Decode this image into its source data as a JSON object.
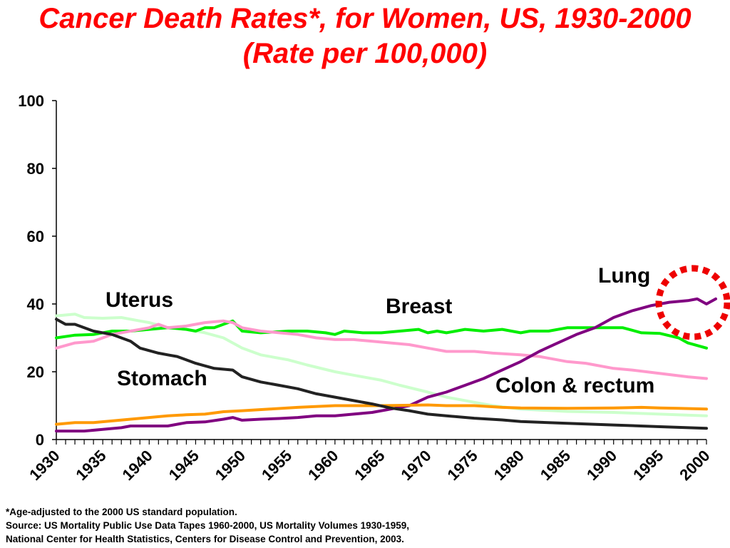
{
  "slide": {
    "title": "Cancer Death Rates*, for Women, US, 1930-2000 (Rate per 100,000)",
    "footnotes": [
      "*Age-adjusted to the 2000 US standard population.",
      "Source:  US Mortality Public Use Data Tapes 1960-2000, US Mortality Volumes 1930-1959,",
      "National Center for Health Statistics, Centers for Disease Control and Prevention, 2003."
    ]
  },
  "chart_data": {
    "type": "line",
    "xlim": [
      1930,
      2000
    ],
    "ylim": [
      0,
      100
    ],
    "x_ticks": [
      1930,
      1935,
      1940,
      1945,
      1950,
      1955,
      1960,
      1965,
      1970,
      1975,
      1980,
      1985,
      1990,
      1995,
      2000
    ],
    "y_ticks": [
      0,
      20,
      40,
      60,
      80,
      100
    ],
    "grid": false,
    "series": [
      {
        "name": "Uterus",
        "color": "#ccffcc",
        "points": [
          [
            1930,
            36.5
          ],
          [
            1932,
            37
          ],
          [
            1933,
            36
          ],
          [
            1935,
            35.8
          ],
          [
            1937,
            36
          ],
          [
            1939,
            35
          ],
          [
            1940,
            34.5
          ],
          [
            1942,
            33
          ],
          [
            1944,
            32.5
          ],
          [
            1946,
            31.5
          ],
          [
            1948,
            30
          ],
          [
            1950,
            27
          ],
          [
            1952,
            25
          ],
          [
            1955,
            23.5
          ],
          [
            1957,
            22
          ],
          [
            1960,
            20
          ],
          [
            1962,
            19
          ],
          [
            1965,
            17.5
          ],
          [
            1967,
            16
          ],
          [
            1970,
            14
          ],
          [
            1972,
            12.5
          ],
          [
            1975,
            11
          ],
          [
            1977,
            10
          ],
          [
            1980,
            9
          ],
          [
            1985,
            8.3
          ],
          [
            1990,
            8
          ],
          [
            1995,
            7.5
          ],
          [
            2000,
            7
          ]
        ]
      },
      {
        "name": "Breast",
        "color": "#00ee00",
        "points": [
          [
            1930,
            30
          ],
          [
            1932,
            30.8
          ],
          [
            1934,
            31
          ],
          [
            1936,
            32
          ],
          [
            1938,
            32
          ],
          [
            1940,
            32.5
          ],
          [
            1942,
            33
          ],
          [
            1944,
            32.5
          ],
          [
            1945,
            32
          ],
          [
            1946,
            33
          ],
          [
            1947,
            33
          ],
          [
            1948,
            34
          ],
          [
            1949,
            35
          ],
          [
            1950,
            32
          ],
          [
            1952,
            31.5
          ],
          [
            1955,
            32
          ],
          [
            1957,
            32
          ],
          [
            1959,
            31.5
          ],
          [
            1960,
            31
          ],
          [
            1961,
            32
          ],
          [
            1963,
            31.5
          ],
          [
            1965,
            31.5
          ],
          [
            1967,
            32
          ],
          [
            1969,
            32.5
          ],
          [
            1970,
            31.5
          ],
          [
            1971,
            32
          ],
          [
            1972,
            31.5
          ],
          [
            1974,
            32.5
          ],
          [
            1976,
            32
          ],
          [
            1978,
            32.5
          ],
          [
            1980,
            31.5
          ],
          [
            1981,
            32
          ],
          [
            1983,
            32
          ],
          [
            1985,
            33
          ],
          [
            1987,
            33
          ],
          [
            1989,
            33
          ],
          [
            1991,
            33
          ],
          [
            1993,
            31.5
          ],
          [
            1995,
            31.3
          ],
          [
            1997,
            30
          ],
          [
            1998,
            28.5
          ],
          [
            2000,
            27
          ]
        ]
      },
      {
        "name": "Colon & rectum",
        "color": "#ff99cc",
        "points": [
          [
            1930,
            27
          ],
          [
            1932,
            28.5
          ],
          [
            1934,
            29
          ],
          [
            1936,
            31
          ],
          [
            1938,
            32
          ],
          [
            1940,
            33
          ],
          [
            1941,
            34
          ],
          [
            1942,
            33
          ],
          [
            1944,
            33.5
          ],
          [
            1946,
            34.5
          ],
          [
            1948,
            35
          ],
          [
            1949,
            34.5
          ],
          [
            1950,
            33
          ],
          [
            1952,
            32
          ],
          [
            1954,
            31.5
          ],
          [
            1956,
            31
          ],
          [
            1958,
            30
          ],
          [
            1960,
            29.5
          ],
          [
            1962,
            29.5
          ],
          [
            1964,
            29
          ],
          [
            1966,
            28.5
          ],
          [
            1968,
            28
          ],
          [
            1970,
            27
          ],
          [
            1972,
            26
          ],
          [
            1975,
            26
          ],
          [
            1977,
            25.5
          ],
          [
            1980,
            25
          ],
          [
            1982,
            24.5
          ],
          [
            1985,
            23
          ],
          [
            1987,
            22.5
          ],
          [
            1990,
            21
          ],
          [
            1992,
            20.5
          ],
          [
            1995,
            19.5
          ],
          [
            1998,
            18.5
          ],
          [
            2000,
            18
          ]
        ]
      },
      {
        "name": "Lung",
        "color": "#800080",
        "points": [
          [
            1930,
            2.5
          ],
          [
            1933,
            2.5
          ],
          [
            1935,
            3
          ],
          [
            1937,
            3.5
          ],
          [
            1938,
            4
          ],
          [
            1940,
            4
          ],
          [
            1942,
            4
          ],
          [
            1944,
            5
          ],
          [
            1946,
            5.2
          ],
          [
            1948,
            6
          ],
          [
            1949,
            6.5
          ],
          [
            1950,
            5.7
          ],
          [
            1952,
            6
          ],
          [
            1954,
            6.2
          ],
          [
            1956,
            6.5
          ],
          [
            1958,
            7
          ],
          [
            1960,
            7
          ],
          [
            1962,
            7.5
          ],
          [
            1964,
            8
          ],
          [
            1966,
            9
          ],
          [
            1968,
            10
          ],
          [
            1970,
            12.5
          ],
          [
            1972,
            14
          ],
          [
            1974,
            16
          ],
          [
            1976,
            18
          ],
          [
            1978,
            20.5
          ],
          [
            1980,
            23
          ],
          [
            1982,
            26
          ],
          [
            1984,
            28.5
          ],
          [
            1986,
            31
          ],
          [
            1988,
            33
          ],
          [
            1990,
            36
          ],
          [
            1992,
            38
          ],
          [
            1994,
            39.5
          ],
          [
            1996,
            40.5
          ],
          [
            1998,
            41
          ],
          [
            1999,
            41.5
          ],
          [
            2000,
            40
          ],
          [
            2001,
            41.5
          ]
        ]
      },
      {
        "name": "Colon & rectum (orange)",
        "color": "#ff9900",
        "points": [
          [
            1930,
            4.5
          ],
          [
            1932,
            5
          ],
          [
            1934,
            5
          ],
          [
            1936,
            5.5
          ],
          [
            1938,
            6
          ],
          [
            1940,
            6.5
          ],
          [
            1942,
            7
          ],
          [
            1944,
            7.3
          ],
          [
            1946,
            7.5
          ],
          [
            1948,
            8.2
          ],
          [
            1950,
            8.5
          ],
          [
            1953,
            9
          ],
          [
            1956,
            9.5
          ],
          [
            1960,
            10
          ],
          [
            1965,
            10
          ],
          [
            1970,
            10.2
          ],
          [
            1972,
            10
          ],
          [
            1975,
            10
          ],
          [
            1978,
            9.5
          ],
          [
            1980,
            9.3
          ],
          [
            1985,
            9.2
          ],
          [
            1990,
            9.3
          ],
          [
            1993,
            9.5
          ],
          [
            1995,
            9.3
          ],
          [
            1997,
            9.2
          ],
          [
            2000,
            9
          ]
        ]
      },
      {
        "name": "Stomach",
        "color": "#222222",
        "points": [
          [
            1930,
            35.5
          ],
          [
            1931,
            34
          ],
          [
            1932,
            34
          ],
          [
            1933,
            33
          ],
          [
            1934,
            32
          ],
          [
            1936,
            31
          ],
          [
            1937,
            30
          ],
          [
            1938,
            29
          ],
          [
            1939,
            27
          ],
          [
            1941,
            25.5
          ],
          [
            1942,
            25
          ],
          [
            1943,
            24.5
          ],
          [
            1945,
            22.5
          ],
          [
            1947,
            21
          ],
          [
            1949,
            20.5
          ],
          [
            1950,
            18.5
          ],
          [
            1952,
            17
          ],
          [
            1954,
            16
          ],
          [
            1956,
            15
          ],
          [
            1958,
            13.5
          ],
          [
            1960,
            12.5
          ],
          [
            1962,
            11.5
          ],
          [
            1964,
            10.5
          ],
          [
            1966,
            9.3
          ],
          [
            1968,
            8.5
          ],
          [
            1970,
            7.5
          ],
          [
            1972,
            7
          ],
          [
            1975,
            6.3
          ],
          [
            1978,
            5.8
          ],
          [
            1980,
            5.3
          ],
          [
            1985,
            4.8
          ],
          [
            1990,
            4.3
          ],
          [
            1995,
            3.8
          ],
          [
            2000,
            3.3
          ]
        ]
      }
    ],
    "annotations": [
      {
        "text": "Uterus"
      },
      {
        "text": "Breast"
      },
      {
        "text": "Lung"
      },
      {
        "text": "Stomach"
      },
      {
        "text": "Colon & rectum"
      }
    ]
  }
}
